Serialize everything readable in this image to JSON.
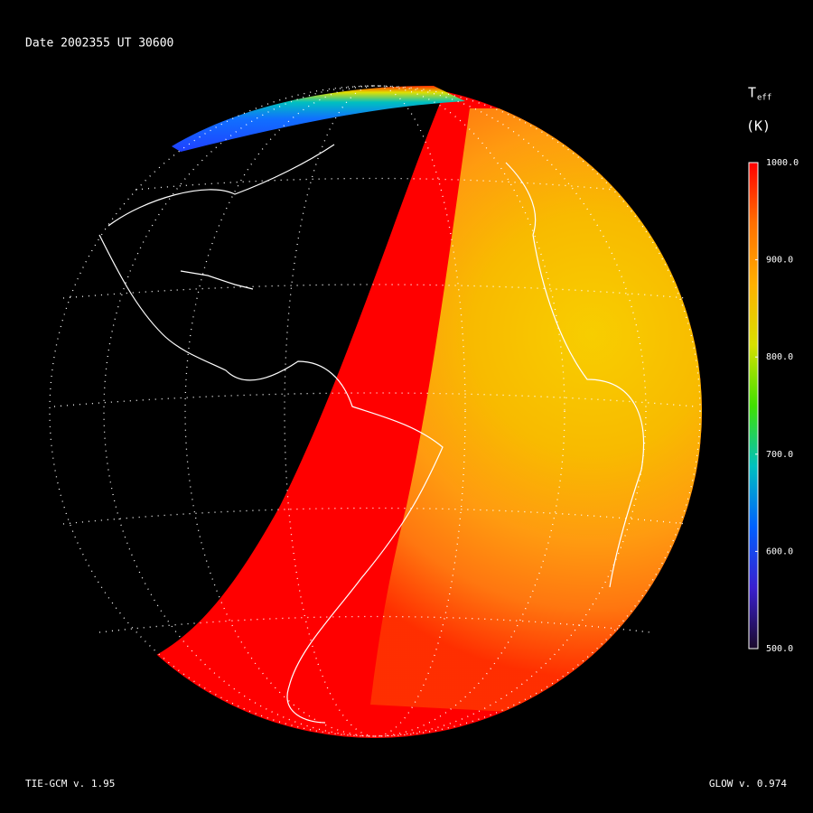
{
  "header": {
    "date_label": "Date 2002355  UT 30600"
  },
  "colorbar": {
    "title": "T",
    "title_subscript": "eff",
    "unit": "(K)",
    "range": [
      500,
      1000
    ],
    "ticks": [
      {
        "value": 1000,
        "label": "1000.0"
      },
      {
        "value": 900,
        "label": "900.0"
      },
      {
        "value": 800,
        "label": "800.0"
      },
      {
        "value": 700,
        "label": "700.0"
      },
      {
        "value": 600,
        "label": "600.0"
      },
      {
        "value": 500,
        "label": "500.0"
      }
    ],
    "colormap": [
      "#1a0a2a",
      "#3a1fd0",
      "#0060ff",
      "#00c0c0",
      "#40e000",
      "#d8e000",
      "#ffb000",
      "#ff7000",
      "#ff0000"
    ]
  },
  "footer": {
    "left": "TIE-GCM v. 1.95",
    "right": "GLOW v. 0.974"
  }
}
